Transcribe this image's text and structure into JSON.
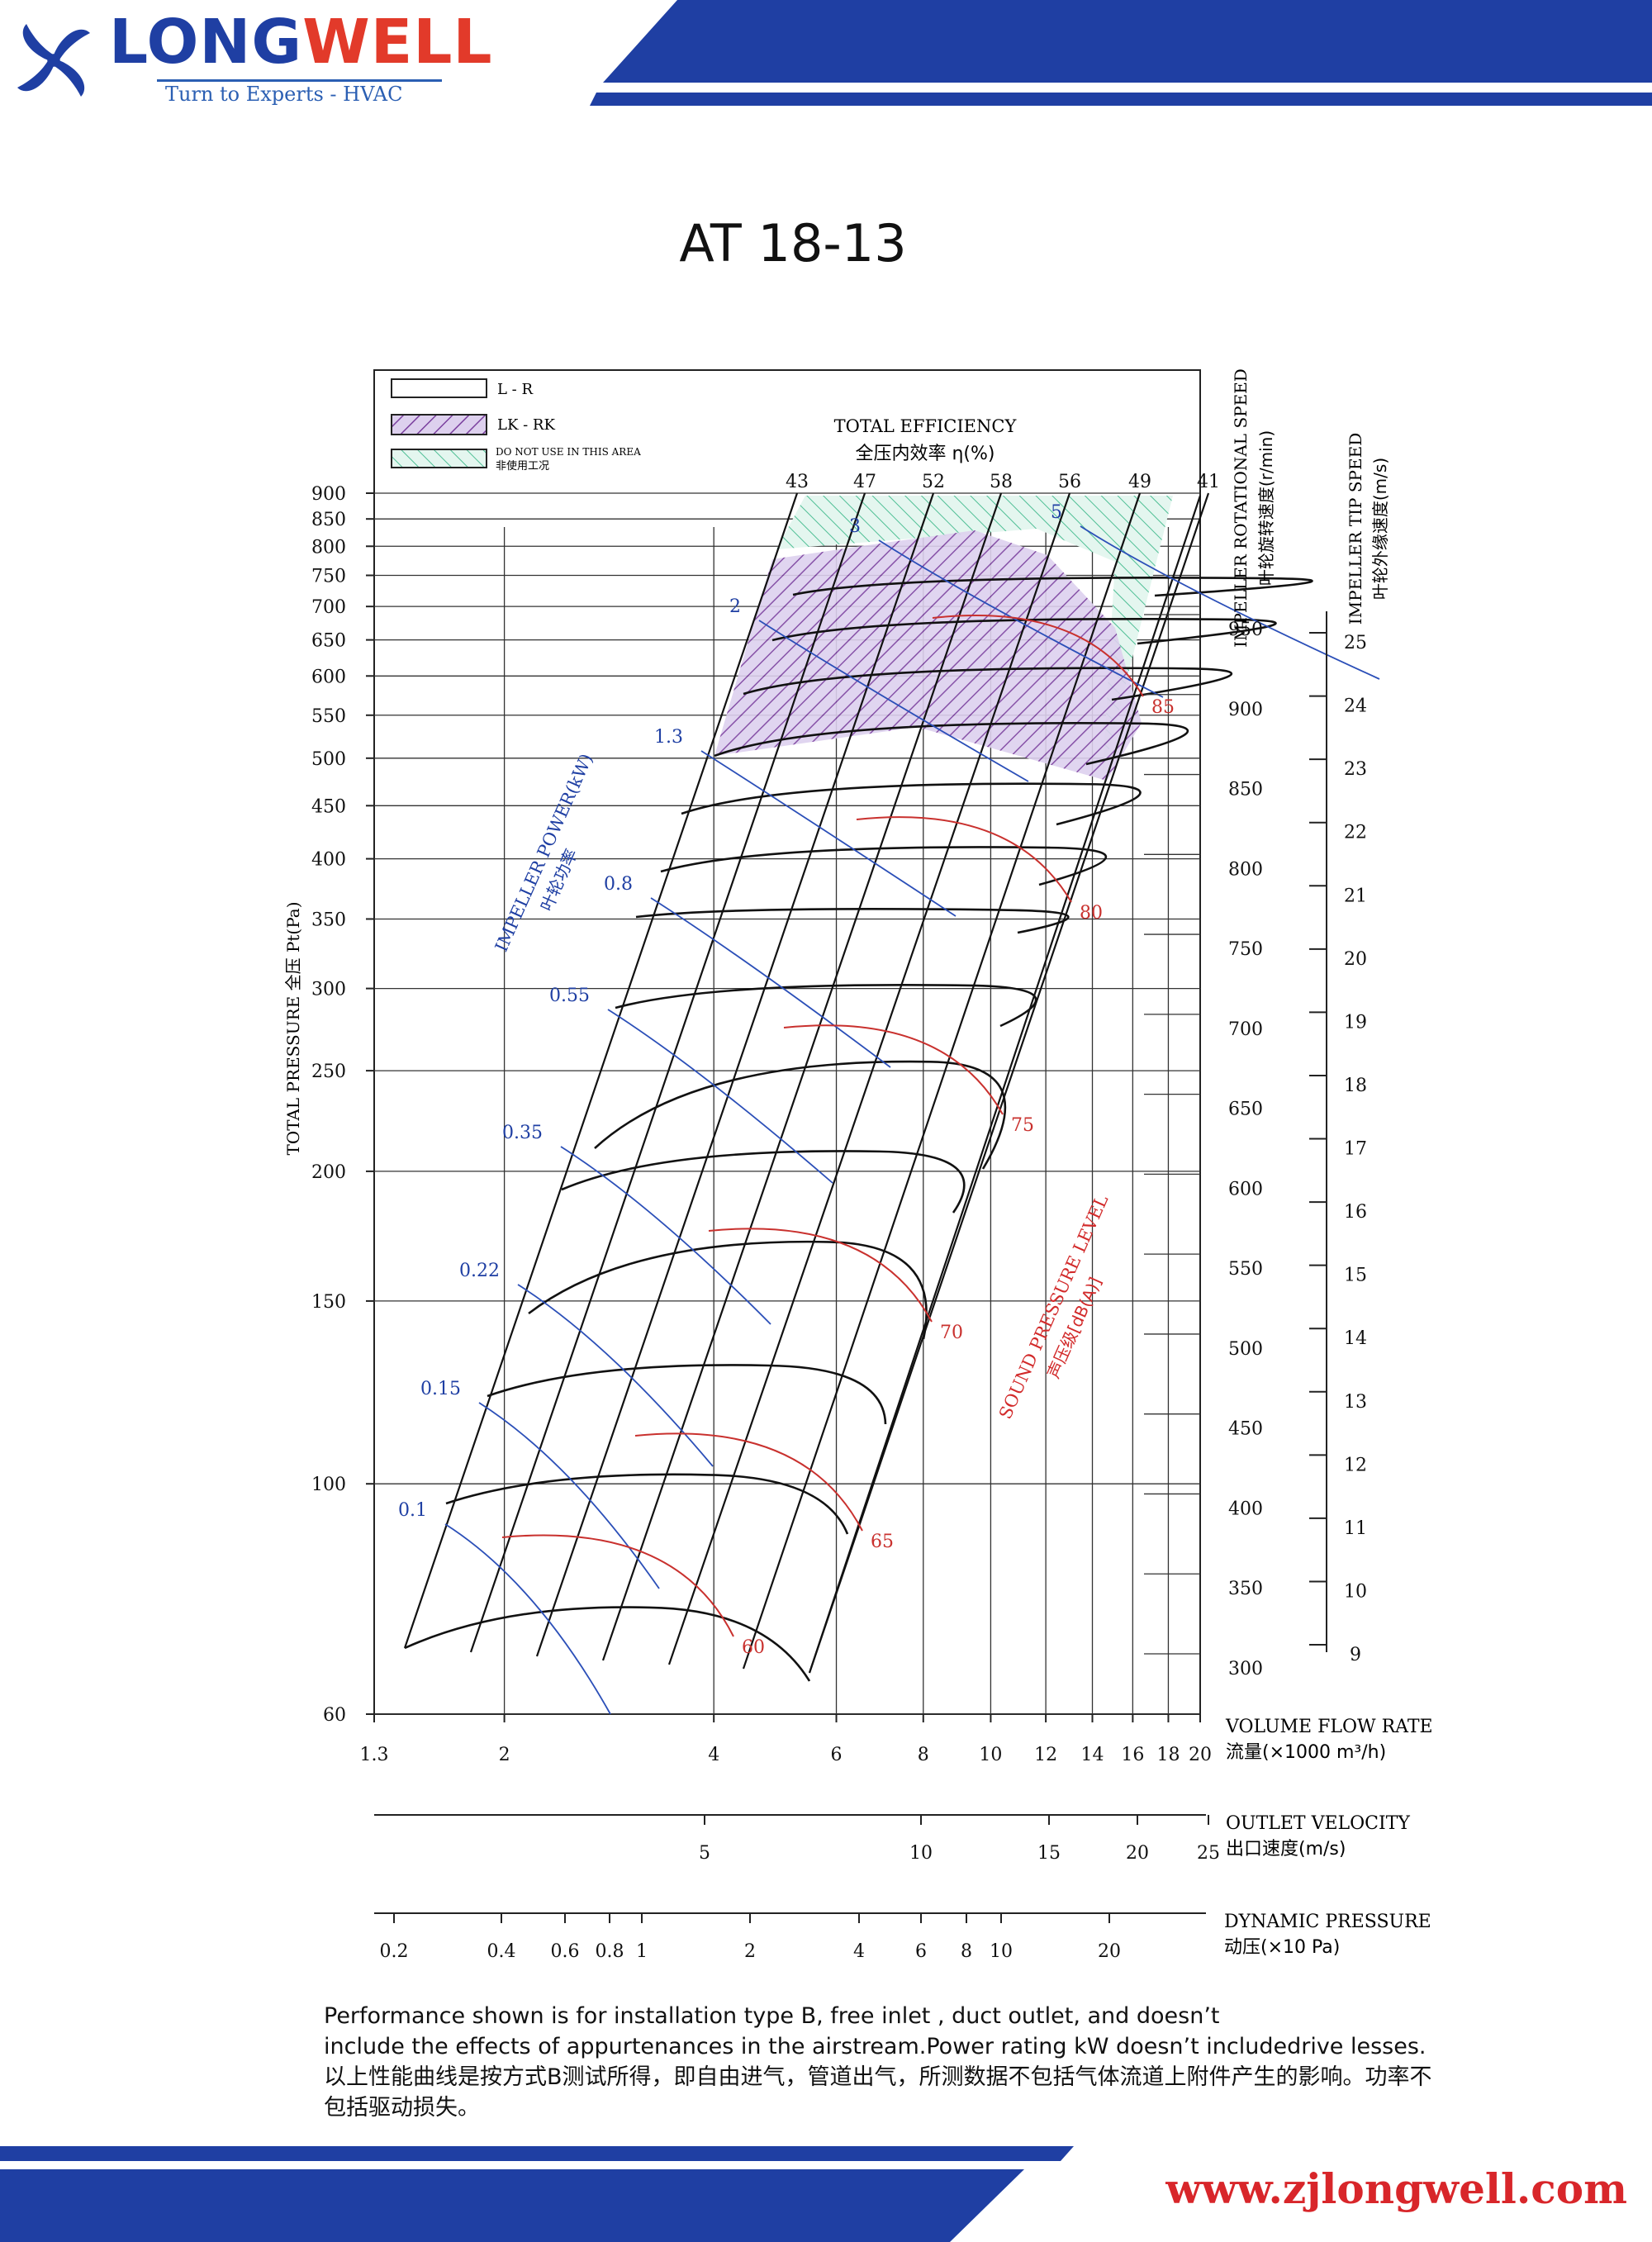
{
  "brand": {
    "name_part1": "LONG",
    "name_part2": "WELL",
    "tagline": "Turn to Experts - HVAC",
    "website": "www.zjlongwell.com",
    "colors": {
      "blue": "#1f3fa3",
      "red": "#e23a2a"
    }
  },
  "chart_data": {
    "type": "line",
    "title": "AT  18-13",
    "legend": {
      "placement": "top-left",
      "items": [
        {
          "label": "L - R",
          "swatch": "empty"
        },
        {
          "label": "LK - RK",
          "swatch": "purple-hatch"
        },
        {
          "label": "DO NOT USE IN THIS AREA",
          "label2": "非使用工况",
          "swatch": "green-hatch"
        }
      ]
    },
    "x_axis": {
      "label": "VOLUME FLOW RATE",
      "label2": "流量(×1000 m³/h)",
      "scale": "log",
      "range": [
        1.3,
        20
      ],
      "ticks": [
        "1.3",
        "2",
        "4",
        "6",
        "8",
        "10",
        "12",
        "14",
        "16",
        "18",
        "20"
      ]
    },
    "y_axis": {
      "label": "TOTAL PRESSURE 全压 Pt(Pa)",
      "scale": "log",
      "range": [
        60,
        900
      ],
      "ticks": [
        "60",
        "100",
        "150",
        "200",
        "250",
        "300",
        "350",
        "400",
        "450",
        "500",
        "550",
        "600",
        "650",
        "700",
        "750",
        "800",
        "850",
        "900"
      ]
    },
    "speed_axis": {
      "label": "IMPELLER ROTATIONAL SPEED",
      "label2": "叶轮旋转速度(r/min)",
      "ticks": [
        "300",
        "350",
        "400",
        "450",
        "500",
        "550",
        "600",
        "650",
        "700",
        "750",
        "800",
        "850",
        "900",
        "950"
      ]
    },
    "tip_speed_axis": {
      "label": "IMPELLER TIP SPEED",
      "label2": "叶轮外缘速度(m/s)",
      "ticks": [
        "9",
        "10",
        "11",
        "12",
        "13",
        "14",
        "15",
        "16",
        "17",
        "18",
        "19",
        "20",
        "21",
        "22",
        "23",
        "24",
        "25"
      ]
    },
    "outlet_velocity_axis": {
      "label": "OUTLET VELOCITY",
      "label2": "出口速度(m/s)",
      "ticks": [
        "5",
        "10",
        "15",
        "20",
        "25"
      ]
    },
    "dynamic_pressure_axis": {
      "label": "DYNAMIC PRESSURE",
      "label2": "动压(×10 Pa)",
      "ticks": [
        "0.2",
        "0.4",
        "0.6",
        "0.8",
        "1",
        "2",
        "4",
        "6",
        "8",
        "10",
        "20"
      ]
    },
    "efficiency": {
      "label": "TOTAL EFFICIENCY",
      "label2": "全压内效率 η(%)",
      "values": [
        "43",
        "47",
        "52",
        "58",
        "56",
        "49",
        "41"
      ]
    },
    "power_kw": {
      "label": "IMPELLER POWER(kW)",
      "label2": "叶轮功率",
      "values": [
        "0.1",
        "0.15",
        "0.22",
        "0.35",
        "0.55",
        "0.8",
        "1.3",
        "2",
        "3",
        "5"
      ]
    },
    "sound_level": {
      "label": "SOUND PRESSURE LEVEL",
      "label2": "声压级[dB(A)]",
      "values": [
        "60",
        "65",
        "70",
        "75",
        "80",
        "85"
      ]
    },
    "speed_curves_rpm": [
      300,
      350,
      400,
      450,
      500,
      550,
      600,
      650,
      700,
      750,
      800,
      850,
      900,
      950
    ],
    "speed_curve_peak_pa": [
      76,
      102,
      130,
      171,
      209,
      255,
      302,
      357,
      410,
      472,
      540,
      610,
      680,
      745
    ]
  },
  "footer": {
    "line1": "Performance shown is for installation type B, free inlet , duct outlet, and doesn’t",
    "line2": "include the effects of appurtenances in the airstream.Power rating kW doesn’t includedrive lesses.",
    "line3": "以上性能曲线是按方式B测试所得，即自由进气，管道出气，所测数据不包括气体流道上附件产生的影响。功率不",
    "line4": "包括驱动损失。"
  }
}
